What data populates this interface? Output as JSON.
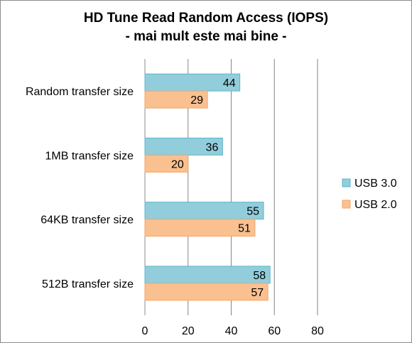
{
  "chart_data": {
    "type": "bar",
    "orientation": "horizontal",
    "title": "HD Tune Read Random Access (IOPS)",
    "subtitle": "- mai mult este mai bine -",
    "categories": [
      "Random transfer size",
      "1MB transfer size",
      "64KB transfer size",
      "512B transfer size"
    ],
    "series": [
      {
        "name": "USB 3.0",
        "values": [
          44,
          36,
          55,
          58
        ],
        "color": "#92cddc",
        "edge": "#5fb4c8"
      },
      {
        "name": "USB 2.0",
        "values": [
          29,
          20,
          51,
          57
        ],
        "color": "#fac090",
        "edge": "#f2a56a"
      }
    ],
    "xlim": [
      0,
      80
    ],
    "xticks": [
      "0",
      "20",
      "40",
      "60",
      "80"
    ],
    "grid": true,
    "legend_position": "right"
  }
}
